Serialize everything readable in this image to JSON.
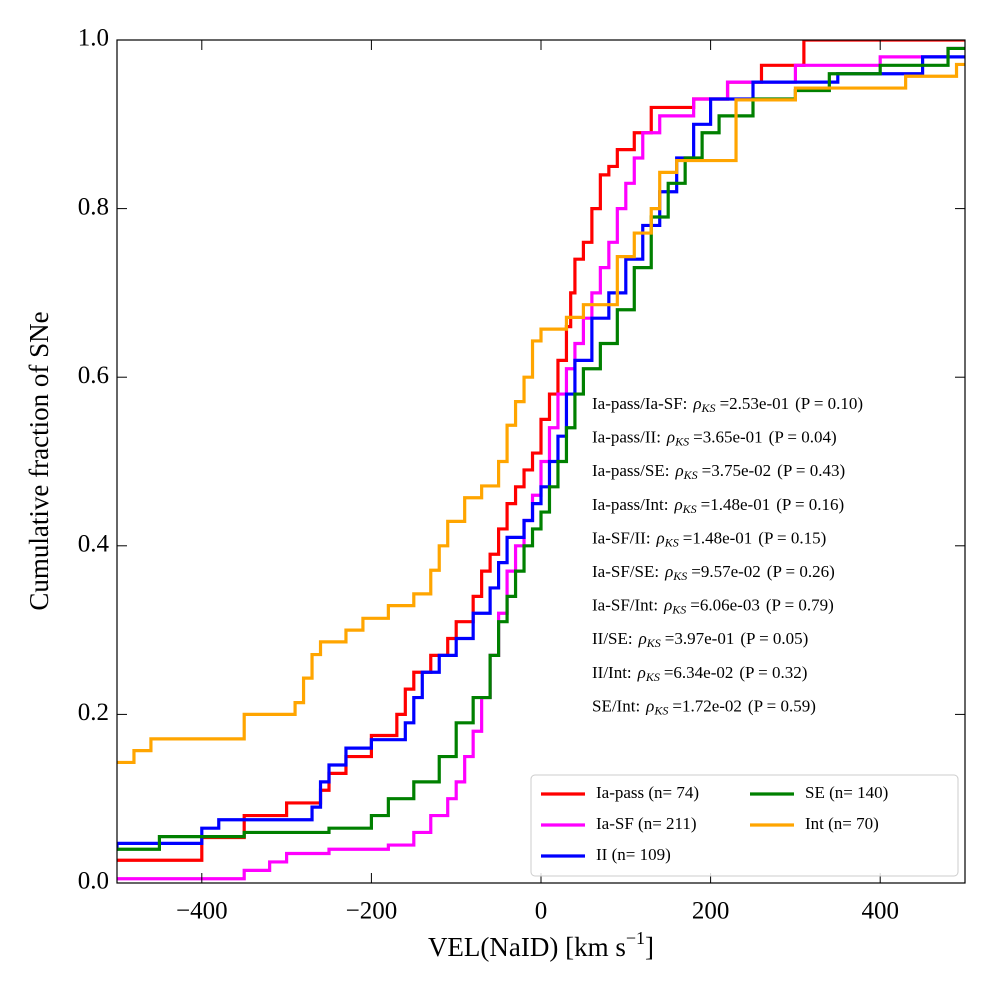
{
  "chart_data": {
    "type": "step",
    "xlabel": "VEL(NaID) [km s",
    "xlabel_sup": "−1",
    "xlabel_end": "]",
    "ylabel": "Cumulative fraction of SNe",
    "xlim": [
      -500,
      500
    ],
    "ylim": [
      0,
      1
    ],
    "xticks": [
      {
        "value": -400,
        "label": "−400"
      },
      {
        "value": -200,
        "label": "−200"
      },
      0,
      200,
      400
    ],
    "yticks": [
      {
        "value": 0,
        "label": "0.0"
      },
      0.2,
      0.4,
      0.6,
      0.8,
      {
        "value": 1,
        "label": "1.0"
      }
    ],
    "legend": "lower right",
    "series": [
      {
        "name": "Ia-pass (n= 74)",
        "color": "#ff0000",
        "x": [
          -510,
          -400,
          -350,
          -300,
          -260,
          -250,
          -230,
          -200,
          -170,
          -160,
          -150,
          -130,
          -110,
          -100,
          -80,
          -70,
          -60,
          -50,
          -40,
          -30,
          -20,
          -10,
          0,
          10,
          20,
          30,
          35,
          40,
          50,
          60,
          70,
          80,
          90,
          110,
          130,
          180,
          220,
          260,
          310
        ],
        "values": [
          0.027,
          0.054,
          0.08,
          0.095,
          0.11,
          0.13,
          0.15,
          0.175,
          0.2,
          0.23,
          0.25,
          0.27,
          0.29,
          0.31,
          0.34,
          0.37,
          0.39,
          0.42,
          0.45,
          0.47,
          0.49,
          0.51,
          0.55,
          0.58,
          0.62,
          0.66,
          0.7,
          0.74,
          0.76,
          0.8,
          0.84,
          0.85,
          0.87,
          0.89,
          0.92,
          0.93,
          0.95,
          0.97,
          1.0
        ]
      },
      {
        "name": "Ia-SF (n= 211)",
        "color": "#ff00ff",
        "x": [
          -510,
          -350,
          -320,
          -300,
          -250,
          -180,
          -150,
          -130,
          -110,
          -100,
          -90,
          -80,
          -70,
          -60,
          -50,
          -40,
          -30,
          -20,
          -10,
          0,
          10,
          20,
          30,
          40,
          50,
          60,
          70,
          80,
          90,
          100,
          110,
          120,
          140,
          180,
          220,
          300,
          400,
          480
        ],
        "values": [
          0.005,
          0.015,
          0.025,
          0.035,
          0.04,
          0.045,
          0.06,
          0.08,
          0.1,
          0.12,
          0.15,
          0.18,
          0.22,
          0.27,
          0.32,
          0.37,
          0.4,
          0.43,
          0.46,
          0.5,
          0.54,
          0.58,
          0.61,
          0.64,
          0.67,
          0.7,
          0.73,
          0.76,
          0.8,
          0.83,
          0.86,
          0.89,
          0.91,
          0.93,
          0.95,
          0.97,
          0.98,
          0.99
        ]
      },
      {
        "name": "II (n= 109)",
        "color": "#0000ff",
        "x": [
          -510,
          -500,
          -400,
          -380,
          -270,
          -260,
          -250,
          -230,
          -200,
          -160,
          -150,
          -140,
          -120,
          -100,
          -80,
          -60,
          -50,
          -40,
          -20,
          -10,
          0,
          10,
          20,
          30,
          40,
          60,
          80,
          100,
          120,
          140,
          160,
          180,
          200,
          250,
          350,
          450
        ],
        "values": [
          0.04,
          0.047,
          0.065,
          0.075,
          0.09,
          0.12,
          0.14,
          0.16,
          0.17,
          0.19,
          0.22,
          0.25,
          0.27,
          0.29,
          0.32,
          0.35,
          0.38,
          0.41,
          0.43,
          0.45,
          0.47,
          0.5,
          0.53,
          0.58,
          0.62,
          0.67,
          0.7,
          0.74,
          0.78,
          0.82,
          0.86,
          0.9,
          0.93,
          0.95,
          0.96,
          0.98
        ]
      },
      {
        "name": "SE (n= 140)",
        "color": "#008000",
        "x": [
          -510,
          -450,
          -350,
          -250,
          -200,
          -180,
          -150,
          -120,
          -100,
          -80,
          -60,
          -50,
          -40,
          -30,
          -20,
          -10,
          0,
          10,
          20,
          30,
          40,
          50,
          70,
          90,
          110,
          130,
          150,
          170,
          190,
          210,
          250,
          300,
          340,
          400,
          480
        ],
        "values": [
          0.04,
          0.055,
          0.06,
          0.065,
          0.08,
          0.1,
          0.12,
          0.15,
          0.19,
          0.22,
          0.27,
          0.31,
          0.34,
          0.37,
          0.4,
          0.42,
          0.44,
          0.47,
          0.5,
          0.54,
          0.58,
          0.61,
          0.64,
          0.68,
          0.73,
          0.79,
          0.83,
          0.86,
          0.89,
          0.91,
          0.93,
          0.94,
          0.96,
          0.97,
          0.99
        ]
      },
      {
        "name": "Int (n= 70)",
        "color": "#ffa500",
        "x": [
          -510,
          -480,
          -460,
          -350,
          -290,
          -280,
          -270,
          -260,
          -230,
          -210,
          -180,
          -150,
          -130,
          -120,
          -110,
          -90,
          -70,
          -50,
          -40,
          -30,
          -20,
          -10,
          0,
          30,
          50,
          90,
          110,
          130,
          140,
          160,
          230,
          300,
          430,
          490
        ],
        "values": [
          0.143,
          0.157,
          0.171,
          0.2,
          0.214,
          0.243,
          0.271,
          0.286,
          0.3,
          0.314,
          0.329,
          0.343,
          0.371,
          0.4,
          0.429,
          0.457,
          0.471,
          0.5,
          0.543,
          0.571,
          0.6,
          0.643,
          0.657,
          0.671,
          0.686,
          0.743,
          0.771,
          0.8,
          0.843,
          0.857,
          0.929,
          0.943,
          0.957,
          0.971
        ]
      }
    ],
    "stat_symbol": "ρ",
    "stat_subscript": "KS",
    "annotations": [
      {
        "pair": "Ia-pass/Ia-SF:",
        "rho": "=2.53e-01",
        "p": "(P = 0.10)"
      },
      {
        "pair": "Ia-pass/II:",
        "rho": "=3.65e-01",
        "p": "(P = 0.04)"
      },
      {
        "pair": "Ia-pass/SE:",
        "rho": "=3.75e-02",
        "p": "(P = 0.43)"
      },
      {
        "pair": "Ia-pass/Int:",
        "rho": "=1.48e-01",
        "p": "(P = 0.16)"
      },
      {
        "pair": "Ia-SF/II:",
        "rho": "=1.48e-01",
        "p": "(P = 0.15)"
      },
      {
        "pair": "Ia-SF/SE:",
        "rho": "=9.57e-02",
        "p": "(P = 0.26)"
      },
      {
        "pair": "Ia-SF/Int:",
        "rho": "=6.06e-03",
        "p": "(P = 0.79)"
      },
      {
        "pair": "II/SE:",
        "rho": "=3.97e-01",
        "p": "(P = 0.05)"
      },
      {
        "pair": "II/Int:",
        "rho": "=6.34e-02",
        "p": "(P = 0.32)"
      },
      {
        "pair": "SE/Int:",
        "rho": "=1.72e-02",
        "p": "(P = 0.59)"
      }
    ]
  }
}
